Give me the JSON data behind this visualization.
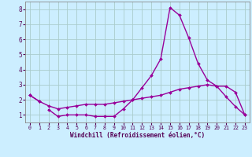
{
  "x_values": [
    0,
    1,
    2,
    3,
    4,
    5,
    6,
    7,
    8,
    9,
    10,
    11,
    12,
    13,
    14,
    15,
    16,
    17,
    18,
    19,
    20,
    21,
    22,
    23
  ],
  "line_peaked_y": [
    null,
    null,
    1.35,
    0.9,
    1.0,
    1.0,
    1.0,
    0.9,
    0.9,
    0.9,
    1.4,
    2.0,
    2.8,
    3.6,
    4.7,
    8.1,
    7.6,
    6.1,
    4.4,
    3.3,
    2.9,
    2.2,
    1.55,
    1.0
  ],
  "line_rising_y": [
    2.3,
    1.9,
    1.6,
    1.4,
    1.5,
    1.6,
    1.7,
    1.7,
    1.7,
    1.8,
    1.9,
    2.0,
    2.1,
    2.2,
    2.3,
    2.5,
    2.7,
    2.8,
    2.9,
    3.0,
    2.9,
    2.9,
    2.5,
    1.0
  ],
  "line_short_y": [
    2.3,
    1.9,
    null,
    null,
    null,
    null,
    null,
    null,
    null,
    null,
    null,
    null,
    null,
    null,
    null,
    null,
    null,
    null,
    null,
    null,
    null,
    null,
    null,
    null
  ],
  "line_color": "#990099",
  "bg_color": "#cceeff",
  "grid_color": "#aacccc",
  "xlabel": "Windchill (Refroidissement éolien,°C)",
  "xlim": [
    -0.5,
    23.5
  ],
  "ylim": [
    0.5,
    8.5
  ],
  "yticks": [
    1,
    2,
    3,
    4,
    5,
    6,
    7,
    8
  ],
  "xticks": [
    0,
    1,
    2,
    3,
    4,
    5,
    6,
    7,
    8,
    9,
    10,
    11,
    12,
    13,
    14,
    15,
    16,
    17,
    18,
    19,
    20,
    21,
    22,
    23
  ],
  "marker": "D",
  "markersize": 2.0,
  "linewidth": 1.0
}
